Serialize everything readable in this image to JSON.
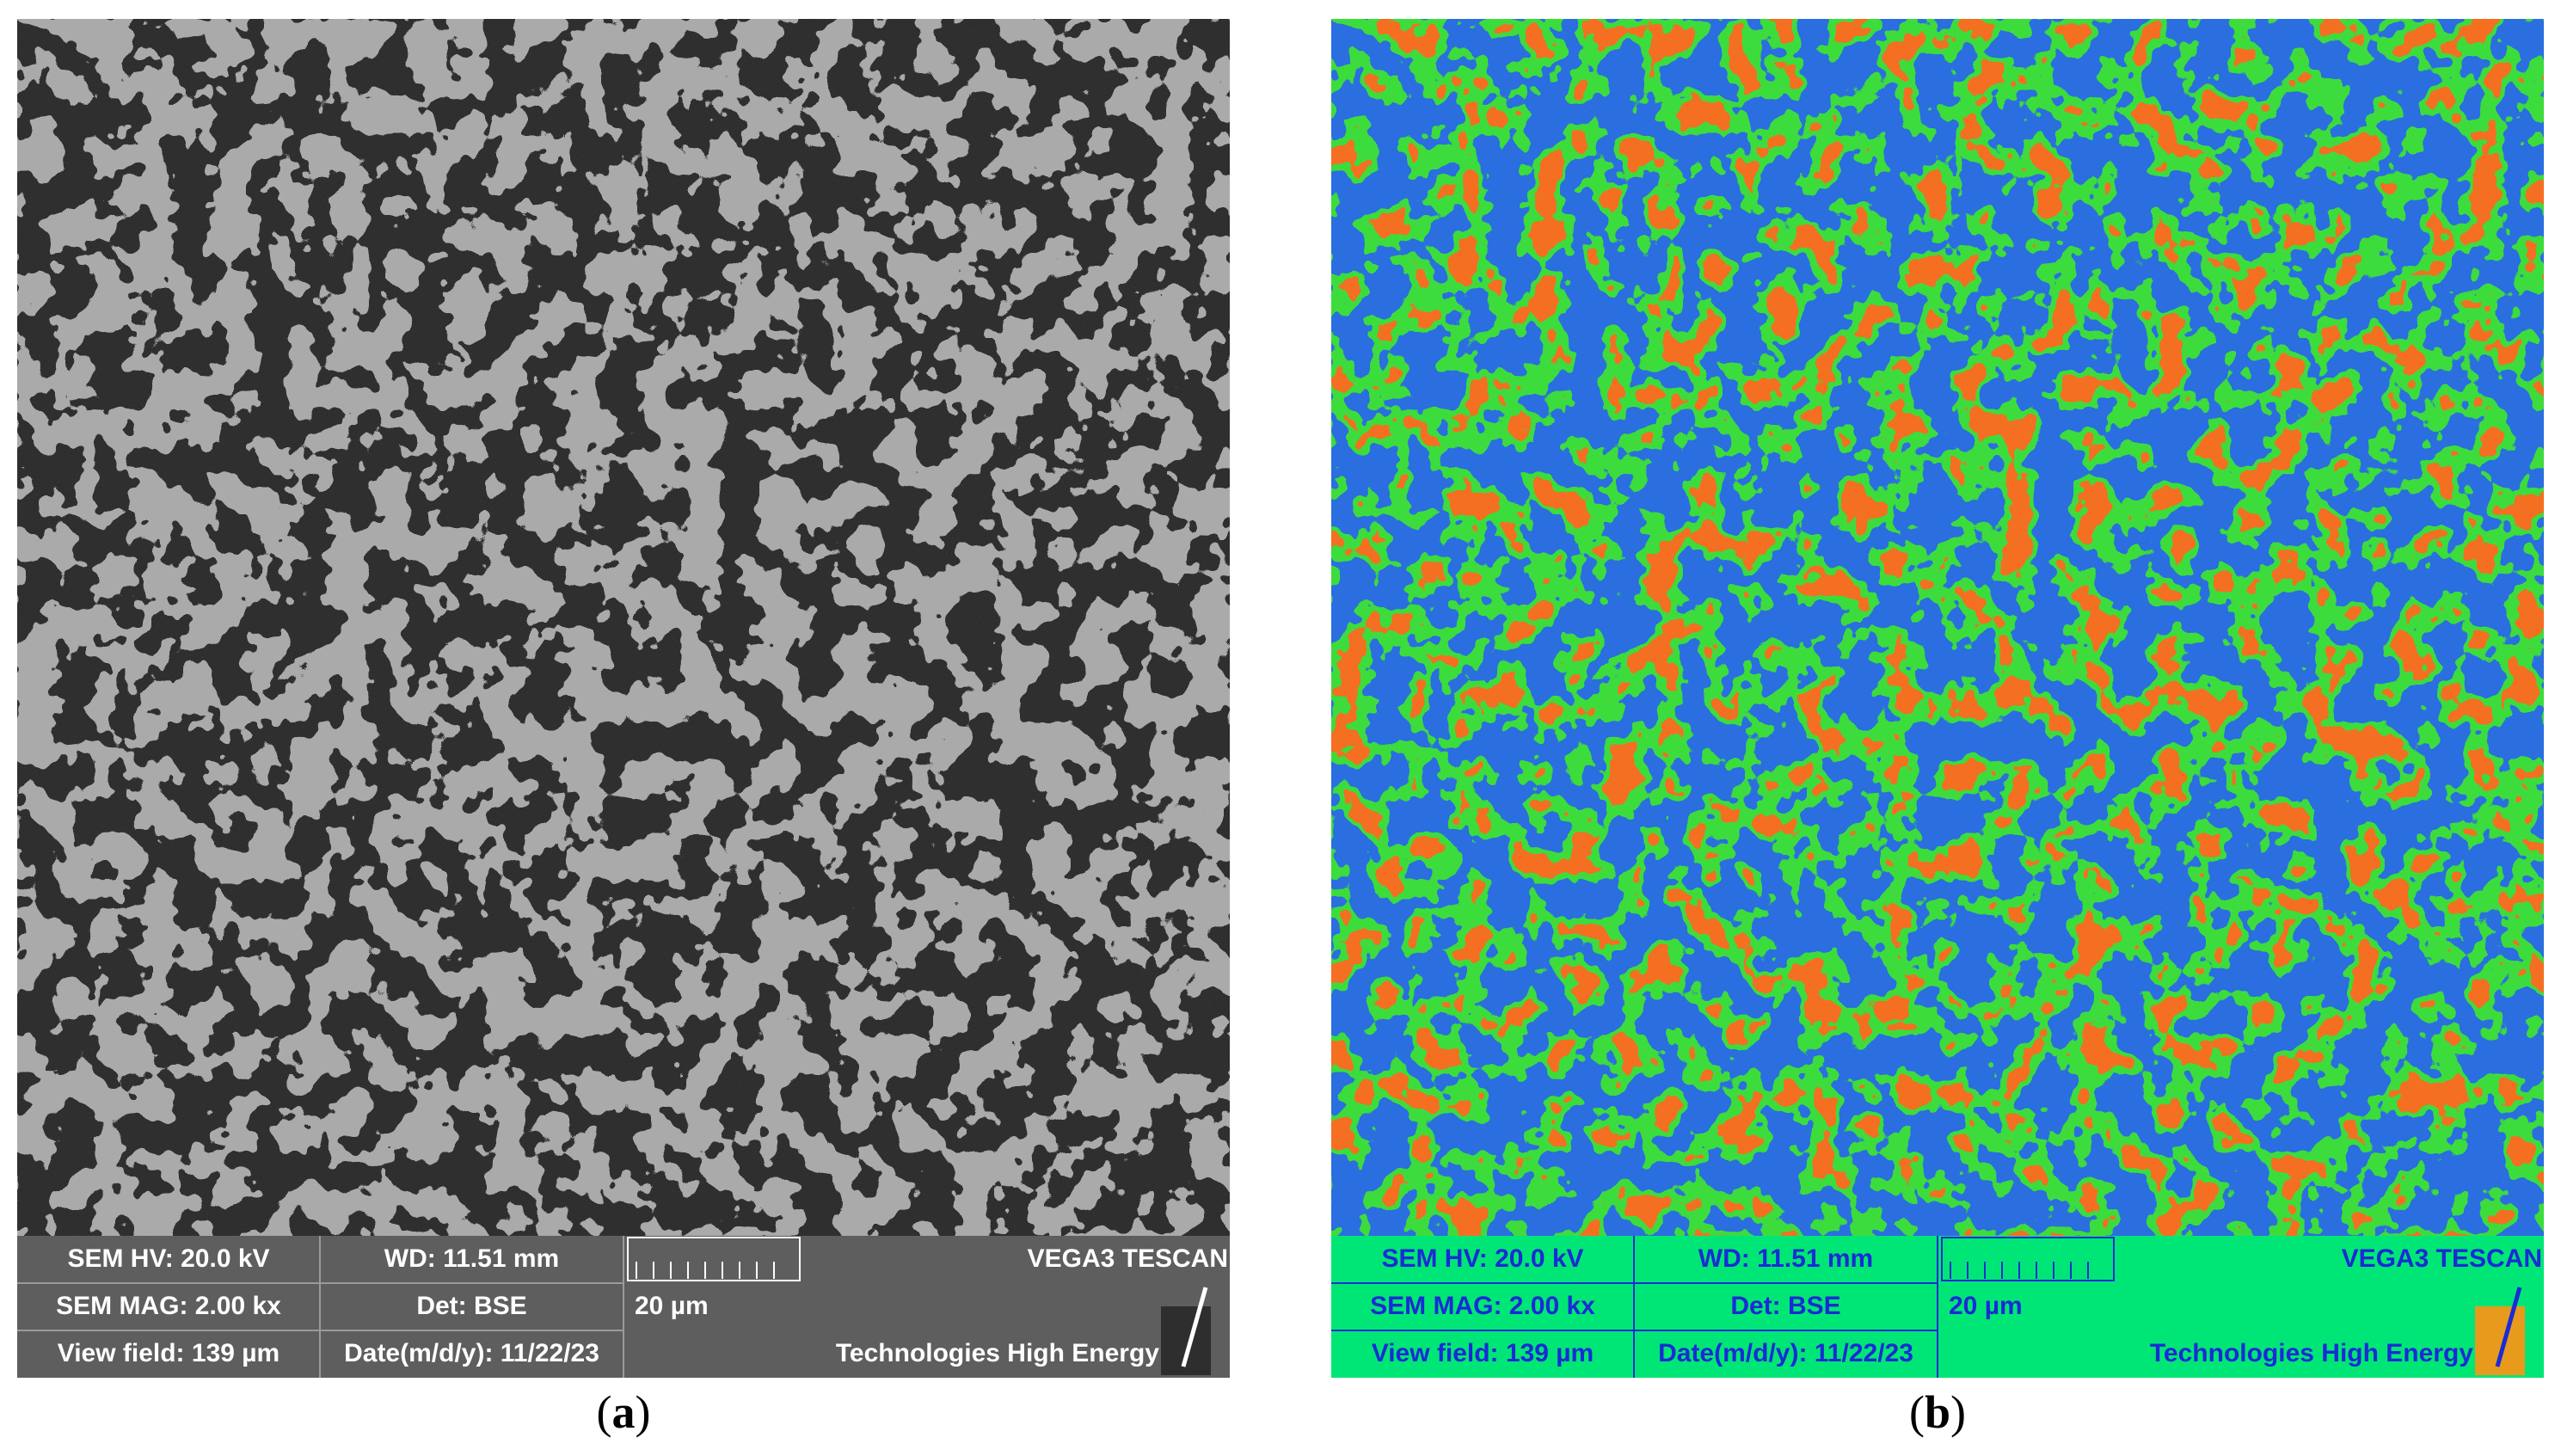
{
  "panels": [
    {
      "id": "a",
      "caption_letter": "a",
      "style": "grayscale",
      "colors": {
        "bar_bg": "#5e5e5e",
        "bar_text": "#ffffff",
        "bar_line": "#9a9a9a",
        "light_phase": "#a9a9a9",
        "dark_phase": "#262626"
      },
      "databar": {
        "sem_hv": "SEM HV: 20.0 kV",
        "wd": "WD: 11.51 mm",
        "brand": "VEGA3 TESCAN",
        "sem_mag": "SEM MAG: 2.00 kx",
        "det": "Det: BSE",
        "scale_label": "20 µm",
        "view_field": "View field: 139 µm",
        "date": "Date(m/d/y): 11/22/23",
        "org": "Technologies High Energy"
      }
    },
    {
      "id": "b",
      "caption_letter": "b",
      "style": "false-color",
      "colors": {
        "bar_bg": "#00e676",
        "bar_text": "#1a2bd6",
        "bar_line": "#1a2bd6",
        "light_phase": "#f4701e",
        "dark_phase": "#2a6ee0",
        "edge": "#3ddc3d",
        "logo": "#e89a1c"
      },
      "databar": {
        "sem_hv": "SEM HV: 20.0 kV",
        "wd": "WD: 11.51 mm",
        "brand": "VEGA3 TESCAN",
        "sem_mag": "SEM MAG: 2.00 kx",
        "det": "Det: BSE",
        "scale_label": "20 µm",
        "view_field": "View field: 139 µm",
        "date": "Date(m/d/y): 11/22/23",
        "org": "Technologies High Energy"
      }
    }
  ],
  "caption_parens": [
    "(",
    ")"
  ]
}
